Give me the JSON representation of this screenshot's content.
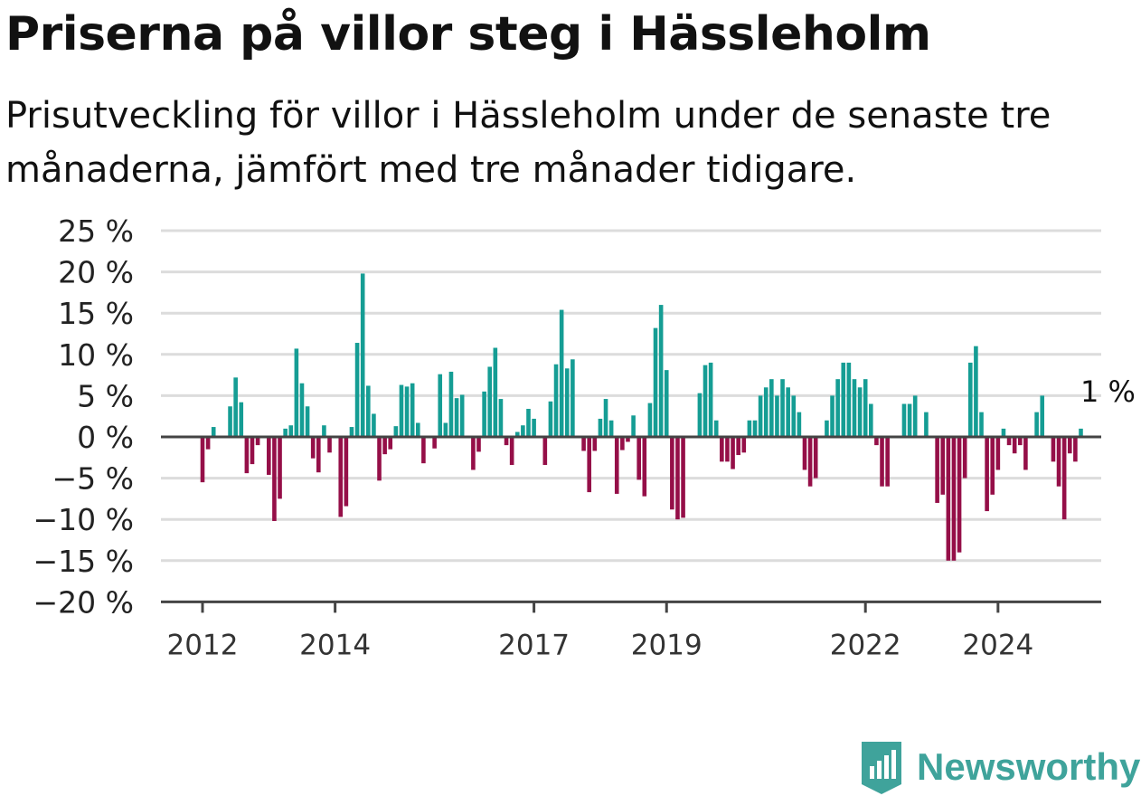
{
  "header": {
    "title": "Priserna på villor steg i Hässleholm",
    "subtitle": "Prisutveckling för villor i Hässleholm under de senaste tre månaderna, jämfört med tre månader tidigare."
  },
  "brand": {
    "name": "Newsworthy",
    "icon": "bar-chart-tag-icon",
    "color": "#3fa39b"
  },
  "chart_data": {
    "type": "bar",
    "ylim": [
      -20,
      25
    ],
    "yticks": [
      25,
      20,
      15,
      10,
      5,
      0,
      -5,
      -10,
      -15,
      -20
    ],
    "ytick_labels": [
      "25 %",
      "20 %",
      "15 %",
      "10 %",
      "5 %",
      "0 %",
      "−5 %",
      "−10 %",
      "−15 %",
      "−20 %"
    ],
    "xticks": [
      {
        "label": "2012",
        "month_index": 0
      },
      {
        "label": "2014",
        "month_index": 24
      },
      {
        "label": "2017",
        "month_index": 60
      },
      {
        "label": "2019",
        "month_index": 84
      },
      {
        "label": "2022",
        "month_index": 120
      },
      {
        "label": "2024",
        "month_index": 144
      }
    ],
    "start_month": "2012-01",
    "grid": true,
    "colors": {
      "positive": "#159d94",
      "negative": "#950f48"
    },
    "annotation": {
      "text": "1 %",
      "target": "last"
    },
    "values": [
      -5.5,
      -1.5,
      1.2,
      0,
      0,
      3.7,
      7.2,
      4.2,
      -4.4,
      -3.3,
      -1,
      0,
      -4.6,
      -10.2,
      -7.5,
      1,
      1.4,
      10.7,
      6.5,
      3.7,
      -2.6,
      -4.3,
      1.4,
      -1.9,
      0,
      -9.7,
      -8.4,
      1.2,
      11.4,
      19.8,
      6.2,
      2.8,
      -5.3,
      -2.1,
      -1.5,
      1.3,
      6.3,
      6.1,
      6.5,
      1.7,
      -3.2,
      0,
      -1.4,
      7.6,
      1.7,
      7.9,
      4.7,
      5.1,
      0,
      -4,
      -1.8,
      5.5,
      8.5,
      10.8,
      4.6,
      -1,
      -3.4,
      0.6,
      1.4,
      3.4,
      2.2,
      0,
      -3.4,
      4.3,
      8.8,
      15.4,
      8.3,
      9.4,
      0,
      -1.7,
      -6.7,
      -1.7,
      2.2,
      4.6,
      2,
      -6.9,
      -1.6,
      -0.6,
      2.6,
      -5.2,
      -7.2,
      4.1,
      13.2,
      16,
      8.1,
      -8.8,
      -10,
      -9.8,
      0,
      0,
      5.3,
      8.7,
      9,
      2,
      -3,
      -3,
      -3.9,
      -2.2,
      -1.9,
      2,
      2,
      5,
      6,
      7,
      5,
      7,
      6,
      5,
      3,
      -4,
      -6,
      -5,
      0,
      2,
      5,
      7,
      9,
      9,
      7,
      6,
      7,
      4,
      -1,
      -6,
      -6,
      0,
      0,
      4,
      4,
      5,
      0,
      3,
      0,
      -8,
      -7,
      -15,
      -15,
      -14,
      -5,
      9,
      11,
      3,
      -9,
      -7,
      -4,
      1,
      -1,
      -2,
      -1,
      -4,
      0,
      3,
      5,
      0,
      -3,
      -6,
      -10,
      -2,
      -3,
      1
    ]
  }
}
